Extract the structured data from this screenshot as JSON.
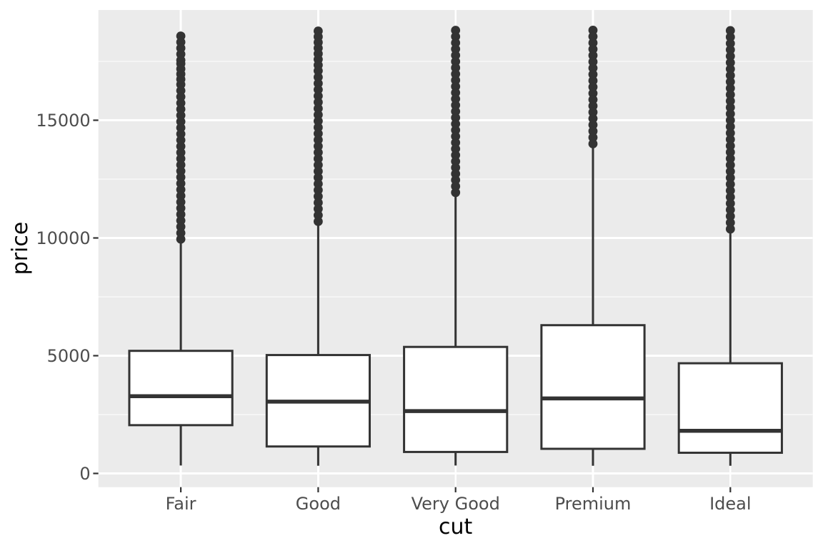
{
  "chart_data": {
    "type": "boxplot",
    "title": "",
    "xlabel": "cut",
    "ylabel": "price",
    "categories": [
      "Fair",
      "Good",
      "Very Good",
      "Premium",
      "Ideal"
    ],
    "y_major_ticks": [
      0,
      5000,
      10000,
      15000
    ],
    "y_minor_ticks": [
      2500,
      7500,
      12500,
      17500
    ],
    "ylim": [
      -590,
      19680
    ],
    "grid": "white major+minor horizontal lines, white vertical line at each category center",
    "legend": "none",
    "series": [
      {
        "category": "Fair",
        "lower_whisker": 337,
        "q1": 2050,
        "median": 3282,
        "q3": 5206,
        "upper_whisker": 9880,
        "outlier_segments": [
          [
            9950,
            16520
          ],
          [
            16740,
            17400
          ],
          [
            17550,
            18574
          ]
        ]
      },
      {
        "category": "Good",
        "lower_whisker": 327,
        "q1": 1145,
        "median": 3050,
        "q3": 5028,
        "upper_whisker": 10790,
        "outlier_segments": [
          [
            10700,
            16830
          ],
          [
            17100,
            18788
          ]
        ]
      },
      {
        "category": "Very Good",
        "lower_whisker": 336,
        "q1": 912,
        "median": 2648,
        "q3": 5373,
        "upper_whisker": 12050,
        "outlier_segments": [
          [
            11930,
            18818
          ]
        ]
      },
      {
        "category": "Premium",
        "lower_whisker": 326,
        "q1": 1046,
        "median": 3185,
        "q3": 6296,
        "upper_whisker": 14140,
        "outlier_segments": [
          [
            14000,
            18823
          ]
        ]
      },
      {
        "category": "Ideal",
        "lower_whisker": 326,
        "q1": 878,
        "median": 1810,
        "q3": 4679,
        "upper_whisker": 10370,
        "outlier_segments": [
          [
            10380,
            18806
          ]
        ]
      }
    ],
    "colors": {
      "figure_background": "#FFFFFF",
      "panel_background": "#EBEBEB",
      "gridline": "#FFFFFF",
      "box_fill": "#FFFFFF",
      "box_stroke": "#333333",
      "outlier": "#333333",
      "tick_mark": "#333333",
      "tick_label": "#4D4D4D",
      "axis_title": "#000000"
    }
  }
}
